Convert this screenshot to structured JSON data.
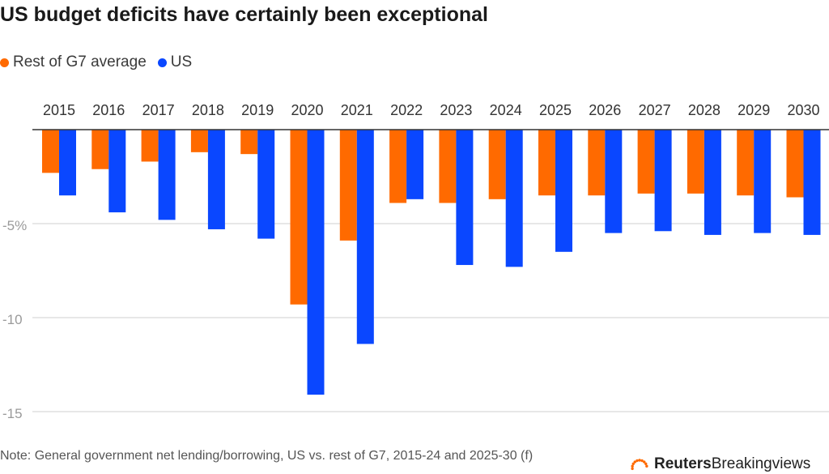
{
  "title": "US budget deficits have certainly been exceptional",
  "legend": [
    {
      "label": "Rest of G7 average",
      "color": "#ff6a00"
    },
    {
      "label": "US",
      "color": "#0a47ff"
    }
  ],
  "note": "Note: General government net lending/borrowing, US vs. rest of G7, 2015-24 and 2025-30 (f)",
  "brand": {
    "name_bold": "Reuters",
    "name_rest": "Breakingviews",
    "logo_icon": "reuters-dot-logo-icon",
    "color": "#ff6a00"
  },
  "chart_data": {
    "type": "bar",
    "title": "US budget deficits have certainly been exceptional",
    "xlabel": "",
    "ylabel": "",
    "categories": [
      "2015",
      "2016",
      "2017",
      "2018",
      "2019",
      "2020",
      "2021",
      "2022",
      "2023",
      "2024",
      "2025",
      "2026",
      "2027",
      "2028",
      "2029",
      "2030"
    ],
    "series": [
      {
        "name": "Rest of G7 average",
        "color": "#ff6a00",
        "values": [
          -2.3,
          -2.1,
          -1.7,
          -1.2,
          -1.3,
          -9.3,
          -5.9,
          -3.9,
          -3.9,
          -3.7,
          -3.5,
          -3.5,
          -3.4,
          -3.4,
          -3.5,
          -3.6
        ]
      },
      {
        "name": "US",
        "color": "#0a47ff",
        "values": [
          -3.5,
          -4.4,
          -4.8,
          -5.3,
          -5.8,
          -14.1,
          -11.4,
          -3.7,
          -7.2,
          -7.3,
          -6.5,
          -5.5,
          -5.4,
          -5.6,
          -5.5,
          -5.6
        ]
      }
    ],
    "ylim": [
      -15,
      0
    ],
    "yticks": [
      -5,
      -10,
      -15
    ],
    "ytick_labels": [
      "-5%",
      "-10",
      "-15"
    ],
    "grid": true,
    "legend_position": "top-left",
    "xaxis_position": "top"
  }
}
